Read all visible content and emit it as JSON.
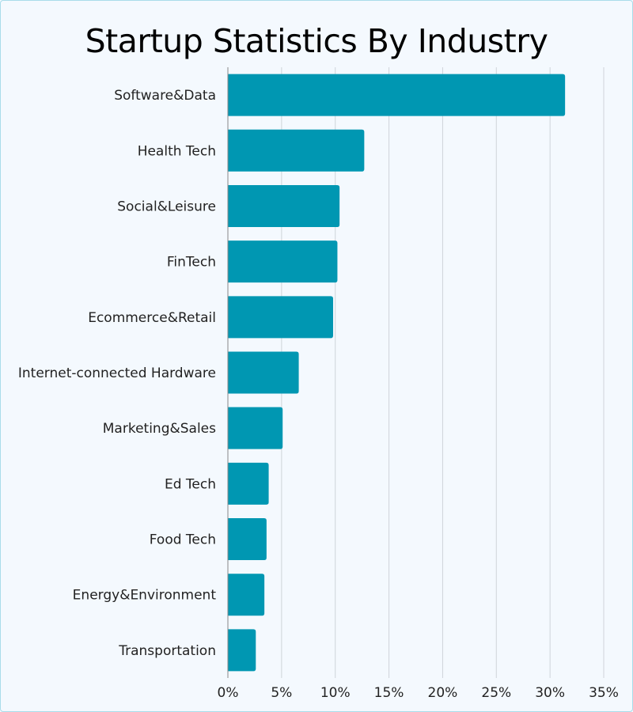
{
  "chart_data": {
    "type": "bar",
    "orientation": "horizontal",
    "title": "Startup Statistics By Industry",
    "categories": [
      "Software&Data",
      "Health Tech",
      "Social&Leisure",
      "FinTech",
      "Ecommerce&Retail",
      "Internet-connected Hardware",
      "Marketing&Sales",
      "Ed Tech",
      "Food Tech",
      "Energy&Environment",
      "Transportation"
    ],
    "values": [
      31.4,
      12.7,
      10.4,
      10.2,
      9.8,
      6.6,
      5.1,
      3.8,
      3.6,
      3.4,
      2.6
    ],
    "unit": "%",
    "xlim": [
      0,
      35
    ],
    "xticks": [
      "0%",
      "5%",
      "10%",
      "15%",
      "20%",
      "25%",
      "30%",
      "35%"
    ],
    "grid": true,
    "bar_color": "#0097b2"
  }
}
